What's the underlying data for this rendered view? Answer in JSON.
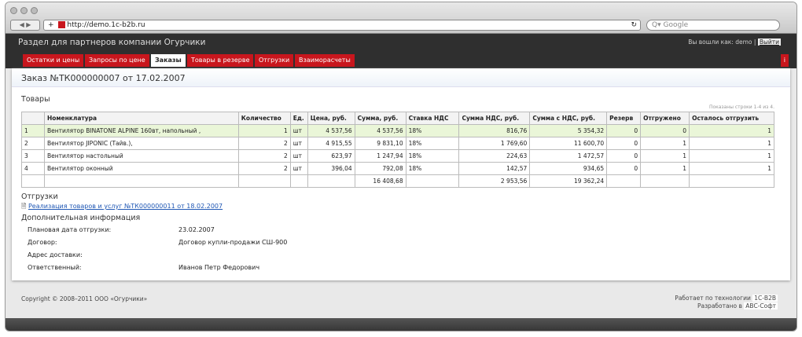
{
  "browser": {
    "url": "http://demo.1c-b2b.ru",
    "search": "Google"
  },
  "header": {
    "title": "Раздел для партнеров компании Огурчики",
    "login": "Вы вошли как: demo",
    "logout": "Выйти"
  },
  "tabs": [
    "Остатки и цены",
    "Запросы по цене",
    "Заказы",
    "Товары в резерве",
    "Отгрузки",
    "Взаиморасчеты"
  ],
  "active_tab": 2,
  "info_button": "i",
  "order_title": "Заказ №ТК000000007 от 17.02.2007",
  "goods": {
    "title": "Товары",
    "shown": "Показаны строки 1-4 из 4.",
    "columns": [
      "Номенклатура",
      "Количество",
      "Ед.",
      "Цена, руб.",
      "Сумма, руб.",
      "Ставка НДС",
      "Сумма НДС, руб.",
      "Сумма с НДС, руб.",
      "Резерв",
      "Отгружено",
      "Осталось отгрузить"
    ],
    "rows": [
      [
        "1",
        "Вентилятор BINATONE ALPINE 160вт, напольный ,",
        "1",
        "шт",
        "4 537,56",
        "4 537,56",
        "18%",
        "816,76",
        "5 354,32",
        "0",
        "0",
        "1"
      ],
      [
        "2",
        "Вентилятор JIPONIC (Тайв.),",
        "2",
        "шт",
        "4 915,55",
        "9 831,10",
        "18%",
        "1 769,60",
        "11 600,70",
        "0",
        "1",
        "1"
      ],
      [
        "3",
        "Вентилятор настольный",
        "2",
        "шт",
        "623,97",
        "1 247,94",
        "18%",
        "224,63",
        "1 472,57",
        "0",
        "1",
        "1"
      ],
      [
        "4",
        "Вентилятор оконный",
        "2",
        "шт",
        "396,04",
        "792,08",
        "18%",
        "142,57",
        "934,65",
        "0",
        "1",
        "1"
      ]
    ],
    "totals": {
      "sum": "16 408,68",
      "vat_sum": "2 953,56",
      "total": "19 362,24"
    }
  },
  "shipments": {
    "title": "Отгрузки",
    "link": "Реализация товаров и услуг №ТК000000011 от 18.02.2007"
  },
  "extra": {
    "title": "Дополнительная информация",
    "fields": [
      {
        "label": "Плановая дата отгрузки:",
        "value": "23.02.2007"
      },
      {
        "label": "Договор:",
        "value": "Договор купли-продажи СШ-900"
      },
      {
        "label": "Адрес доставки:"
      },
      {
        "label": "Ответственный:",
        "value": "Иванов Петр Федорович"
      }
    ]
  },
  "footer": {
    "copyright": "Copyright © 2008–2011 ООО «Огурчики»",
    "tech_label": "Работает по технологии",
    "tech": "1С-B2B",
    "dev_label": "Разработано в",
    "dev": "ABC-Софт"
  }
}
